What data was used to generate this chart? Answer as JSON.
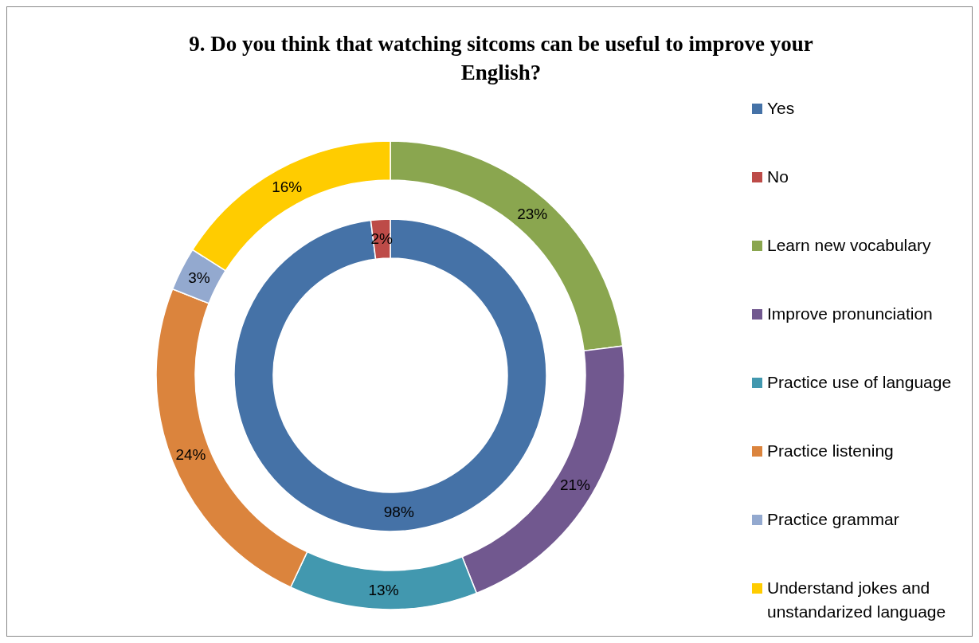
{
  "chart_data": {
    "type": "donut",
    "title": "9. Do you think that watching sitcoms can be useful to improve your English?",
    "categories": [
      "Yes",
      "No",
      "Learn new vocabulary",
      "Improve pronunciation",
      "Practice use of language",
      "Practice listening",
      "Practice grammar",
      "Understand jokes and unstandarized language"
    ],
    "colors": [
      "#4572a7",
      "#bd4b48",
      "#8aa64f",
      "#71588f",
      "#4298af",
      "#db843d",
      "#93a9cf",
      "#ffcc00"
    ],
    "series": [
      {
        "values": [
          98,
          2,
          null,
          null,
          null,
          null,
          null,
          null
        ],
        "value_labels": [
          "98%",
          "2%",
          null,
          null,
          null,
          null,
          null,
          null
        ]
      },
      {
        "values": [
          null,
          null,
          23,
          21,
          13,
          24,
          3,
          16
        ],
        "value_labels": [
          null,
          null,
          "23%",
          "21%",
          "13%",
          "24%",
          "3%",
          "16%"
        ]
      }
    ],
    "legend": "right"
  }
}
